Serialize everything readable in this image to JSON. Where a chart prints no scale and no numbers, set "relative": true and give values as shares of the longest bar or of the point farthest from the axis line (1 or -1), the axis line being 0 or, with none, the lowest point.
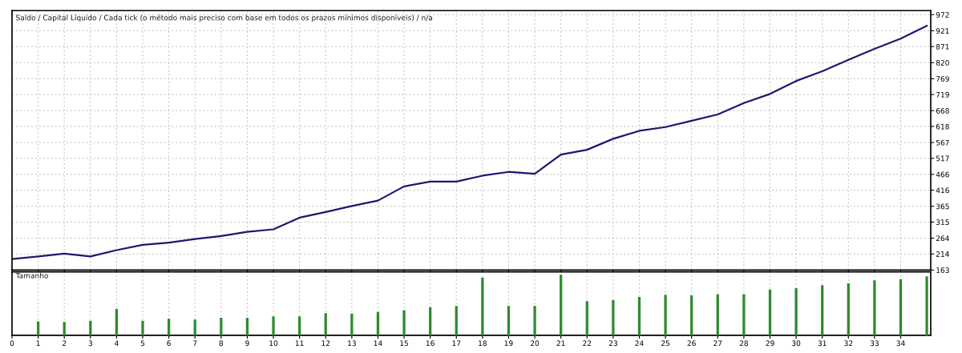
{
  "chart_data": [
    {
      "type": "line",
      "title": "Saldo / Capital Líquido / Cada tick (o método mais preciso com base em todos os prazos mínimos disponíveis) / n/a",
      "x": [
        0,
        1,
        2,
        3,
        4,
        5,
        6,
        7,
        8,
        9,
        10,
        11,
        12,
        13,
        14,
        15,
        16,
        17,
        18,
        19,
        20,
        21,
        22,
        23,
        24,
        25,
        26,
        27,
        28,
        29,
        30,
        31,
        32,
        33,
        34,
        35
      ],
      "series": [
        {
          "color": "#1a1a6e",
          "values": [
            198,
            206,
            215,
            206,
            226,
            243,
            250,
            261,
            271,
            284,
            292,
            329,
            347,
            366,
            383,
            428,
            443,
            443,
            462,
            474,
            468,
            529,
            544,
            579,
            604,
            616,
            636,
            656,
            692,
            721,
            762,
            793,
            829,
            864,
            896,
            937
          ]
        }
      ],
      "xlim": [
        0,
        35.15
      ],
      "xticks": [
        0,
        1,
        2,
        3,
        4,
        5,
        6,
        7,
        8,
        9,
        10,
        11,
        12,
        13,
        14,
        15,
        16,
        17,
        18,
        19,
        20,
        21,
        22,
        23,
        24,
        25,
        26,
        27,
        28,
        29,
        30,
        31,
        32,
        33,
        34
      ],
      "ylim": [
        163,
        985
      ],
      "yticks": [
        163,
        214,
        264,
        315,
        365,
        416,
        466,
        517,
        567,
        618,
        668,
        719,
        769,
        820,
        871,
        921,
        972
      ],
      "grid": true,
      "tick_labels": "y",
      "legend": false
    },
    {
      "type": "bar",
      "title": "Tamanho",
      "relative": true,
      "x": [
        1,
        2,
        3,
        4,
        5,
        6,
        7,
        8,
        9,
        10,
        11,
        12,
        13,
        14,
        15,
        16,
        17,
        18,
        19,
        20,
        21,
        22,
        23,
        24,
        25,
        26,
        27,
        28,
        29,
        30,
        31,
        32,
        33,
        34,
        35
      ],
      "values": [
        0.23,
        0.22,
        0.24,
        0.435,
        0.24,
        0.275,
        0.26,
        0.29,
        0.29,
        0.315,
        0.315,
        0.365,
        0.36,
        0.385,
        0.415,
        0.465,
        0.485,
        0.955,
        0.485,
        0.485,
        1,
        0.565,
        0.58,
        0.635,
        0.67,
        0.66,
        0.68,
        0.68,
        0.755,
        0.78,
        0.83,
        0.86,
        0.91,
        0.93,
        0.975
      ],
      "color": "#2e8b2e",
      "xlim": [
        0,
        35.15
      ],
      "xticks": [
        0,
        1,
        2,
        3,
        4,
        5,
        6,
        7,
        8,
        9,
        10,
        11,
        12,
        13,
        14,
        15,
        16,
        17,
        18,
        19,
        20,
        21,
        22,
        23,
        24,
        25,
        26,
        27,
        28,
        29,
        30,
        31,
        32,
        33,
        34
      ],
      "grid": "x",
      "tick_labels": "x"
    }
  ]
}
